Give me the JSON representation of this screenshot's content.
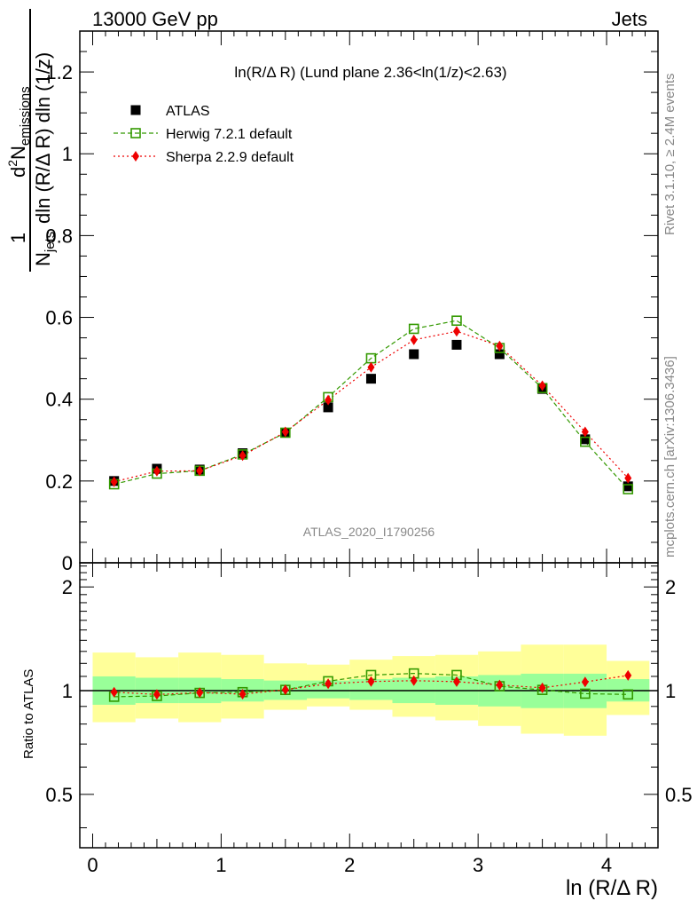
{
  "header": {
    "left": "13000 GeV pp",
    "right": "Jets",
    "plot_title": "ln(R/Δ R) (Lund plane 2.36<ln(1/z)<2.63)",
    "watermark": "ATLAS_2020_I1790256",
    "side_rivet": "Rivet 3.1.10, ≥ 2.4M events",
    "side_mcplots": "mcplots.cern.ch [arXiv:1306.3436]"
  },
  "chart_data": [
    {
      "type": "scatter",
      "xlabel": "ln (R/Δ R)",
      "ylabel_parts": {
        "frac_num_one": "1",
        "frac_den_one": "N",
        "den_one_sub": "jets",
        "num": "d",
        "num_sup": "2",
        "num_N": "N",
        "num_sub": "emissions",
        "den": "dln (R/Δ R) dln (1/z)"
      },
      "xlim": [
        -0.1,
        4.4
      ],
      "ylim": [
        0,
        1.3
      ],
      "yticks": [
        0,
        0.2,
        0.4,
        0.6,
        0.8,
        1,
        1.2
      ],
      "ytick_labels": [
        "0",
        "0.2",
        "0.4",
        "0.6",
        "0.8",
        "1",
        "1.2"
      ],
      "legend_placement": "top-left",
      "series": [
        {
          "name": "ATLAS",
          "style": "marker-square-filled",
          "color": "#000000",
          "x": [
            0.167,
            0.5,
            0.833,
            1.167,
            1.5,
            1.833,
            2.167,
            2.5,
            2.833,
            3.167,
            3.5,
            3.833,
            4.167
          ],
          "y": [
            0.2,
            0.23,
            0.228,
            0.268,
            0.318,
            0.38,
            0.45,
            0.51,
            0.533,
            0.51,
            0.425,
            0.302,
            0.187
          ]
        },
        {
          "name": "Herwig 7.2.1 default",
          "style": "marker-square-open dashed",
          "color": "#339900",
          "x": [
            0.167,
            0.5,
            0.833,
            1.167,
            1.5,
            1.833,
            2.167,
            2.5,
            2.833,
            3.167,
            3.5,
            3.833,
            4.167
          ],
          "y": [
            0.192,
            0.218,
            0.225,
            0.265,
            0.318,
            0.405,
            0.5,
            0.572,
            0.592,
            0.525,
            0.427,
            0.296,
            0.18
          ]
        },
        {
          "name": "Sherpa 2.2.9 default",
          "style": "marker-diamond-filled dotted",
          "color": "#ee0000",
          "x": [
            0.167,
            0.5,
            0.833,
            1.167,
            1.5,
            1.833,
            2.167,
            2.5,
            2.833,
            3.167,
            3.5,
            3.833,
            4.167
          ],
          "y": [
            0.198,
            0.224,
            0.225,
            0.262,
            0.32,
            0.398,
            0.478,
            0.545,
            0.566,
            0.53,
            0.433,
            0.32,
            0.207
          ]
        }
      ]
    },
    {
      "type": "scatter",
      "ylabel": "Ratio to ATLAS",
      "xlabel": "ln (R/Δ R)",
      "xlim": [
        -0.1,
        4.4
      ],
      "ylim": [
        0.35,
        2.35
      ],
      "yscale": "log",
      "yticks_major": [
        0.5,
        1,
        2
      ],
      "ytick_labels": [
        "0.5",
        "1",
        "2"
      ],
      "xticks": [
        0,
        1,
        2,
        3,
        4
      ],
      "xtick_labels": [
        "0",
        "1",
        "2",
        "3",
        "4"
      ],
      "reference_line": 1,
      "bins": [
        [
          0,
          0.333
        ],
        [
          0.333,
          0.667
        ],
        [
          0.667,
          1.0
        ],
        [
          1.0,
          1.333
        ],
        [
          1.333,
          1.667
        ],
        [
          1.667,
          2.0
        ],
        [
          2.0,
          2.333
        ],
        [
          2.333,
          2.667
        ],
        [
          2.667,
          3.0
        ],
        [
          3.0,
          3.333
        ],
        [
          3.333,
          3.667
        ],
        [
          3.667,
          4.0
        ],
        [
          4.0,
          4.333
        ]
      ],
      "bands": [
        {
          "label": "total uncertainty",
          "color": "#ffff99",
          "low": [
            0.81,
            0.83,
            0.81,
            0.83,
            0.88,
            0.9,
            0.88,
            0.84,
            0.82,
            0.79,
            0.75,
            0.74,
            0.85
          ],
          "high": [
            1.29,
            1.25,
            1.29,
            1.27,
            1.2,
            1.19,
            1.23,
            1.26,
            1.27,
            1.3,
            1.36,
            1.36,
            1.22
          ]
        },
        {
          "label": "statistical uncertainty",
          "color": "#99ff99",
          "low": [
            0.91,
            0.92,
            0.92,
            0.93,
            0.94,
            0.95,
            0.94,
            0.92,
            0.91,
            0.9,
            0.89,
            0.89,
            0.93
          ],
          "high": [
            1.1,
            1.09,
            1.09,
            1.08,
            1.07,
            1.07,
            1.08,
            1.09,
            1.1,
            1.11,
            1.12,
            1.12,
            1.08
          ]
        }
      ],
      "series": [
        {
          "name": "Herwig 7.2.1 default",
          "style": "marker-square-open dashed",
          "color": "#339900",
          "x": [
            0.167,
            0.5,
            0.833,
            1.167,
            1.5,
            1.833,
            2.167,
            2.5,
            2.833,
            3.167,
            3.5,
            3.833,
            4.167
          ],
          "y": [
            0.96,
            0.965,
            0.985,
            0.99,
            1.005,
            1.065,
            1.11,
            1.122,
            1.11,
            1.03,
            1.005,
            0.98,
            0.975
          ]
        },
        {
          "name": "Sherpa 2.2.9 default",
          "style": "marker-diamond-filled dotted",
          "color": "#ee0000",
          "x": [
            0.167,
            0.5,
            0.833,
            1.167,
            1.5,
            1.833,
            2.167,
            2.5,
            2.833,
            3.167,
            3.5,
            3.833,
            4.167
          ],
          "y": [
            0.99,
            0.975,
            0.987,
            0.977,
            1.006,
            1.047,
            1.063,
            1.069,
            1.062,
            1.039,
            1.019,
            1.06,
            1.107
          ]
        }
      ]
    }
  ]
}
